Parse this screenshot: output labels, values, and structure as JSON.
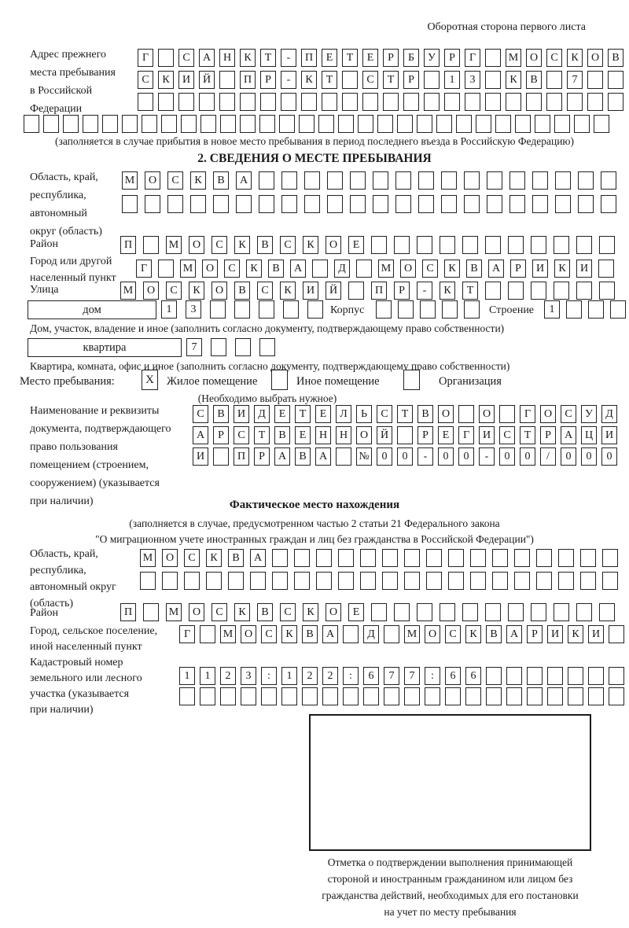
{
  "colors": {
    "ink": "#1b1b1b",
    "paper": "#ffffff"
  },
  "page": {
    "header_note": "Оборотная сторона первого листа"
  },
  "prev_address": {
    "label_text": "Адрес прежнего\nместа пребывания\nв Российской\nФедерации",
    "grid_rows": [
      {
        "chars": "Г САНКТ-ПЕТЕРБУРГ МОСКОВ",
        "count": 24
      },
      {
        "chars": "СКИЙ ПР-КТ СТР 13 КВ 7",
        "count": 24
      },
      {
        "chars": "",
        "count": 24
      },
      {
        "chars": "",
        "count": 30
      }
    ],
    "note": "(заполняется в случае прибытия в новое место пребывания в период последнего въезда в Российскую Федерацию)"
  },
  "section2": {
    "title": "2. СВЕДЕНИЯ О МЕСТЕ ПРЕБЫВАНИЯ",
    "region": {
      "label_text": "Область, край,\nреспублика,\nавтономный\nокруг (область)",
      "grid_rows": [
        {
          "chars": "МОСКВА",
          "count": 22
        },
        {
          "chars": "",
          "count": 22
        }
      ]
    },
    "district": {
      "label": "Район",
      "grid": {
        "chars": "П МОСКВСКОЕ",
        "count": 22
      }
    },
    "city": {
      "label_text": "Город или другой\nнаселенный пункт",
      "grid": {
        "chars": "Г МОСКВА Д МОСКВАРИКИ",
        "count": 22
      }
    },
    "street": {
      "label": "Улица",
      "grid": {
        "chars": "МОСКОВСКИЙ ПР-КТ",
        "count": 22
      }
    },
    "house": {
      "box_label": "дом",
      "num_grid": {
        "chars": "13",
        "count": 7
      },
      "korpus_label": "Корпус",
      "korpus_grid": {
        "chars": "",
        "count": 5
      },
      "stroenie_label": "Строение",
      "stroenie_grid": {
        "chars": "1",
        "count": 4
      },
      "note": "Дом, участок, владение и иное (заполнить согласно документу, подтверждающему право собственности)"
    },
    "apartment": {
      "box_label": "квартира",
      "num_grid": {
        "chars": "7",
        "count": 4
      },
      "note": "Квартира, комната, офис и иное (заполнить согласно документу, подтверждающему право собственности)"
    },
    "stay_type": {
      "label": "Место пребывания:",
      "options": [
        {
          "label": "Жилое помещение",
          "mark": "X"
        },
        {
          "label": "Иное помещение",
          "mark": ""
        },
        {
          "label": "Организация",
          "mark": ""
        }
      ],
      "note": "(Необходимо выбрать нужное)"
    },
    "document": {
      "label_text": "Наименование и реквизиты\nдокумента, подтверждающего\nправо пользования\nпомещением (строением,\nсооружением) (указывается\nпри наличии)",
      "grid_rows": [
        {
          "chars": "СВИДЕТЕЛЬСТВО О ГОСУД",
          "count": 21
        },
        {
          "chars": "АРСТВЕННОЙ РЕГИСТРАЦИ",
          "count": 21
        },
        {
          "chars": "И ПРАВА №00-00-00/000",
          "count": 21
        }
      ]
    }
  },
  "actual_location": {
    "title": "Фактическое место нахождения",
    "note_line1": "(заполняется в случае, предусмотренном частью 2 статьи 21 Федерального закона",
    "note_line2": "\"О миграционном учете иностранных граждан и лиц без гражданства в Российской Федерации\")",
    "region": {
      "label_text": "Область, край,\nреспублика,\nавтономный округ\n(область)",
      "grid_rows": [
        {
          "chars": "МОСКВА",
          "count": 22
        },
        {
          "chars": "",
          "count": 22
        }
      ]
    },
    "district": {
      "label": "Район",
      "grid": {
        "chars": "П МОСКВСКОЕ",
        "count": 22
      }
    },
    "city": {
      "label_text": "Город, сельское поселение,\nиной населенный пункт",
      "grid": {
        "chars": "Г МОСКВА Д МОСКВАРИКИ",
        "count": 22
      }
    },
    "cadastral": {
      "label_text": "Кадастровый номер\nземельного или лесного\nучастка (указывается\nпри наличии)",
      "grid_rows": [
        {
          "chars": "1123:122:677:66",
          "count": 22
        },
        {
          "chars": "",
          "count": 22
        }
      ]
    },
    "stamp_note": "Отметка о подтверждении выполнения принимающей\nстороной и иностранным гражданином или лицом без\nгражданства действий, необходимых для его постановки\nна учет по месту пребывания"
  }
}
